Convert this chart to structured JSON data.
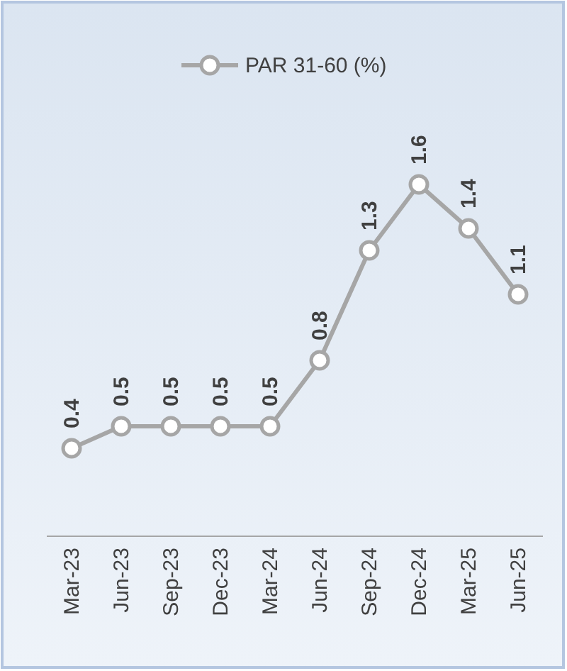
{
  "chart_data": {
    "type": "line",
    "categories": [
      "Mar-23",
      "Jun-23",
      "Sep-23",
      "Dec-23",
      "Mar-24",
      "Jun-24",
      "Sep-24",
      "Dec-24",
      "Mar-25",
      "Jun-25"
    ],
    "series": [
      {
        "name": "PAR 31-60 (%)",
        "color": "#a6a6a6",
        "values": [
          0.4,
          0.5,
          0.5,
          0.5,
          0.5,
          0.8,
          1.3,
          1.6,
          1.4,
          1.1
        ]
      }
    ],
    "tick_labels": "x",
    "data_labels": true,
    "legend": "top",
    "marker": "circle",
    "grid": false
  }
}
